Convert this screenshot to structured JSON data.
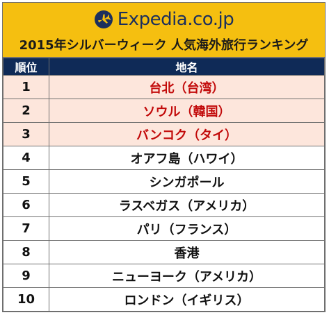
{
  "logo": {
    "text": "Expedia.co.jp",
    "icon": "plane-globe-icon",
    "color": "#1b2f5d"
  },
  "title": "2015年シルバーウィーク 人気海外旅行ランキング",
  "colors": {
    "header_bg": "#f5bf10",
    "table_header_bg": "#0f2a57",
    "highlight_bg": "#fde6dc",
    "highlight_text": "#c20a0a"
  },
  "table": {
    "headers": [
      "順位",
      "地名"
    ],
    "rows": [
      {
        "rank": "1",
        "name": "台北（台湾）",
        "highlight": true
      },
      {
        "rank": "2",
        "name": "ソウル（韓国）",
        "highlight": true
      },
      {
        "rank": "3",
        "name": "バンコク（タイ）",
        "highlight": true
      },
      {
        "rank": "4",
        "name": "オアフ島（ハワイ）",
        "highlight": false
      },
      {
        "rank": "5",
        "name": "シンガポール",
        "highlight": false
      },
      {
        "rank": "6",
        "name": "ラスベガス（アメリカ）",
        "highlight": false
      },
      {
        "rank": "7",
        "name": "パリ（フランス）",
        "highlight": false
      },
      {
        "rank": "8",
        "name": "香港",
        "highlight": false
      },
      {
        "rank": "9",
        "name": "ニューヨーク（アメリカ）",
        "highlight": false
      },
      {
        "rank": "10",
        "name": "ロンドン（イギリス）",
        "highlight": false
      }
    ]
  }
}
